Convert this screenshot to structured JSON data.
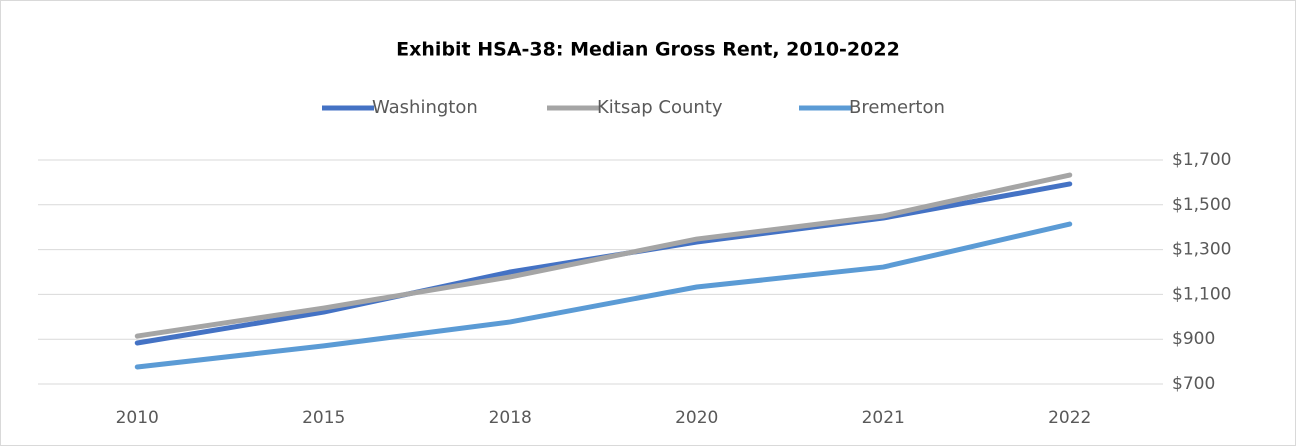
{
  "chart_data": {
    "type": "line",
    "title": "Exhibit HSA-38: Median Gross Rent, 2010-2022",
    "categories": [
      "2010",
      "2015",
      "2018",
      "2020",
      "2021",
      "2022"
    ],
    "series": [
      {
        "name": "Washington",
        "color": "#4472c4",
        "values": [
          883,
          1021,
          1200,
          1334,
          1441,
          1593
        ]
      },
      {
        "name": "Kitsap County",
        "color": "#a5a5a5",
        "values": [
          914,
          1039,
          1178,
          1347,
          1450,
          1633
        ]
      },
      {
        "name": "Bremerton",
        "color": "#5b9bd5",
        "values": [
          776,
          870,
          977,
          1133,
          1222,
          1414
        ]
      }
    ],
    "ylim": [
      700,
      1700
    ],
    "yticks": [
      {
        "value": 700,
        "label": "$700"
      },
      {
        "value": 900,
        "label": "$900"
      },
      {
        "value": 1100,
        "label": "$1,100"
      },
      {
        "value": 1300,
        "label": "$1,300"
      },
      {
        "value": 1500,
        "label": "$1,500"
      },
      {
        "value": 1700,
        "label": "$1,700"
      }
    ],
    "grid": true,
    "legend": "top"
  }
}
